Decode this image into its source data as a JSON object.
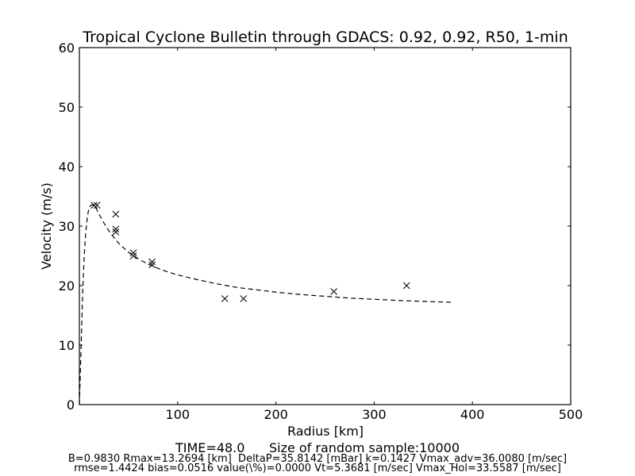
{
  "chart_data": {
    "type": "scatter",
    "title": "Tropical Cyclone Bulletin through GDACS: 0.92, 0.92, R50, 1-min",
    "xlabel": "Radius [km]",
    "ylabel": "Velocity (m/s)",
    "xlim": [
      0,
      500
    ],
    "ylim": [
      0,
      60
    ],
    "x_ticks": [
      100,
      200,
      300,
      400,
      500
    ],
    "y_ticks": [
      0,
      10,
      20,
      30,
      40,
      50,
      60
    ],
    "grid": false,
    "legend": "none",
    "series": [
      {
        "marker": "x",
        "color": "#000000",
        "x": [
          15,
          18,
          37,
          37,
          37,
          55,
          55,
          74,
          74,
          148,
          167,
          259,
          333
        ],
        "y": [
          33.5,
          33.5,
          32.0,
          29.5,
          29.0,
          25.5,
          25.0,
          24.0,
          23.5,
          17.8,
          17.8,
          19.0,
          20.0
        ]
      },
      {
        "line_style": "dashed",
        "color": "#000000",
        "x": [
          0,
          2,
          3,
          4,
          5,
          6,
          7,
          8,
          9,
          10,
          11,
          12,
          13.27,
          15,
          17,
          20,
          25,
          30,
          35,
          40,
          50,
          60,
          70,
          80,
          90,
          100,
          120,
          140,
          160,
          180,
          200,
          225,
          250,
          275,
          300,
          325,
          350,
          378
        ],
        "y": [
          0,
          11.0,
          17.0,
          21.6,
          25.1,
          27.8,
          29.8,
          31.3,
          32.4,
          33.0,
          33.4,
          33.5,
          33.6,
          33.5,
          33.0,
          32.0,
          30.5,
          29.2,
          28.1,
          27.1,
          25.6,
          24.5,
          23.6,
          22.9,
          22.3,
          21.8,
          21.0,
          20.3,
          19.7,
          19.3,
          18.9,
          18.5,
          18.2,
          17.9,
          17.7,
          17.5,
          17.35,
          17.2
        ]
      }
    ]
  },
  "footer": {
    "line1": "TIME=48.0      Size of random sample:10000",
    "line2": "B=0.9830 Rmax=13.2694 [km]  DeltaP=35.8142 [mBar] k=0.1427 Vmax_adv=36.0080 [m/sec]",
    "line3": "rmse=1.4424 bias=0.0516 value(\\%)=0.0000 Vt=5.3681 [m/sec] Vmax_Hol=33.5587 [m/sec]"
  }
}
